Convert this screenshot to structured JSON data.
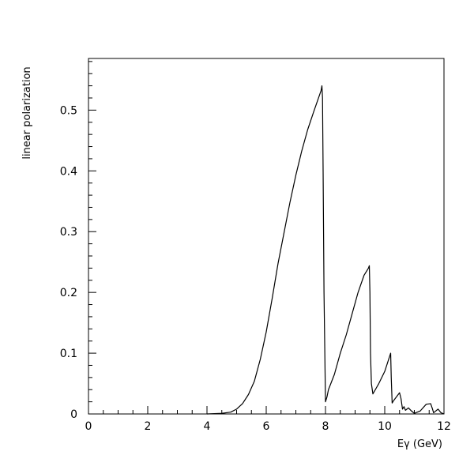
{
  "chart_data": {
    "type": "line",
    "title": "",
    "xlabel": "Eγ (GeV)",
    "ylabel": "linear polarization",
    "xlim": [
      0,
      12
    ],
    "ylim": [
      0,
      0.585
    ],
    "grid": false,
    "x_ticks": [
      0,
      2,
      4,
      6,
      8,
      10,
      12
    ],
    "x_tick_labels": [
      "0",
      "2",
      "4",
      "6",
      "8",
      "10",
      "12"
    ],
    "y_ticks": [
      0,
      0.1,
      0.2,
      0.3,
      0.4,
      0.5
    ],
    "y_tick_labels": [
      "0",
      "0.1",
      "0.2",
      "0.3",
      "0.4",
      "0.5"
    ],
    "series": [
      {
        "name": "",
        "x": [
          4.0,
          4.5,
          4.8,
          5.0,
          5.2,
          5.4,
          5.6,
          5.8,
          6.0,
          6.2,
          6.4,
          6.6,
          6.8,
          7.0,
          7.2,
          7.4,
          7.6,
          7.8,
          7.85,
          7.88,
          7.9,
          7.92,
          7.95,
          8.0,
          8.05,
          8.1,
          8.3,
          8.5,
          8.7,
          8.9,
          9.1,
          9.3,
          9.45,
          9.48,
          9.5,
          9.52,
          9.55,
          9.6,
          9.8,
          10.0,
          10.2,
          10.22,
          10.25,
          10.3,
          10.5,
          10.55,
          10.6,
          10.65,
          10.7,
          10.8,
          10.9,
          11.0,
          11.2,
          11.4,
          11.55,
          11.6,
          11.65,
          11.7,
          11.8,
          11.9,
          12.0
        ],
        "y": [
          0.0,
          0.001,
          0.003,
          0.008,
          0.017,
          0.032,
          0.054,
          0.09,
          0.135,
          0.19,
          0.248,
          0.298,
          0.348,
          0.393,
          0.433,
          0.468,
          0.497,
          0.525,
          0.532,
          0.54,
          0.52,
          0.4,
          0.2,
          0.02,
          0.028,
          0.04,
          0.065,
          0.1,
          0.13,
          0.165,
          0.2,
          0.228,
          0.24,
          0.244,
          0.2,
          0.1,
          0.05,
          0.033,
          0.05,
          0.07,
          0.1,
          0.06,
          0.018,
          0.022,
          0.035,
          0.025,
          0.008,
          0.012,
          0.006,
          0.01,
          0.005,
          0.001,
          0.005,
          0.016,
          0.017,
          0.01,
          0.002,
          0.004,
          0.008,
          0.002,
          0.0
        ]
      }
    ]
  }
}
